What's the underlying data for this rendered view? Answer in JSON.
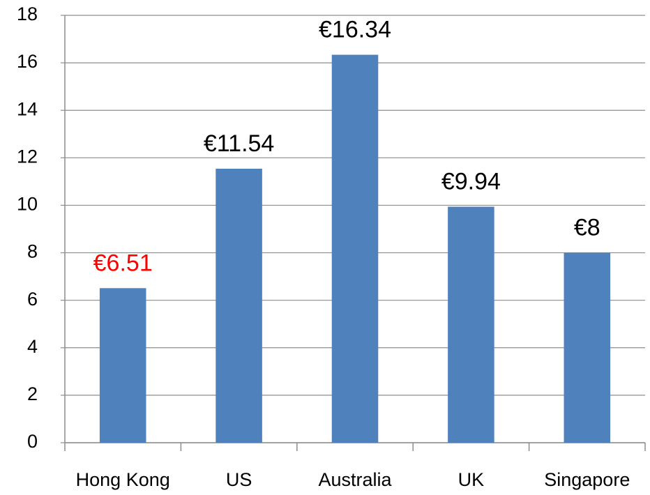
{
  "chart_data": {
    "type": "bar",
    "categories": [
      "Hong Kong",
      "US",
      "Australia",
      "UK",
      "Singapore"
    ],
    "values": [
      6.51,
      11.54,
      16.34,
      9.94,
      8
    ],
    "value_labels": [
      "€6.51",
      "€11.54",
      "€16.34",
      "€9.94",
      "€8"
    ],
    "value_label_colors": [
      "#ff0000",
      "#000000",
      "#000000",
      "#000000",
      "#000000"
    ],
    "color": "#4f81bd",
    "ylim": [
      0,
      18
    ],
    "yticks": [
      0,
      2,
      4,
      6,
      8,
      10,
      12,
      14,
      16,
      18
    ],
    "grid": true
  }
}
